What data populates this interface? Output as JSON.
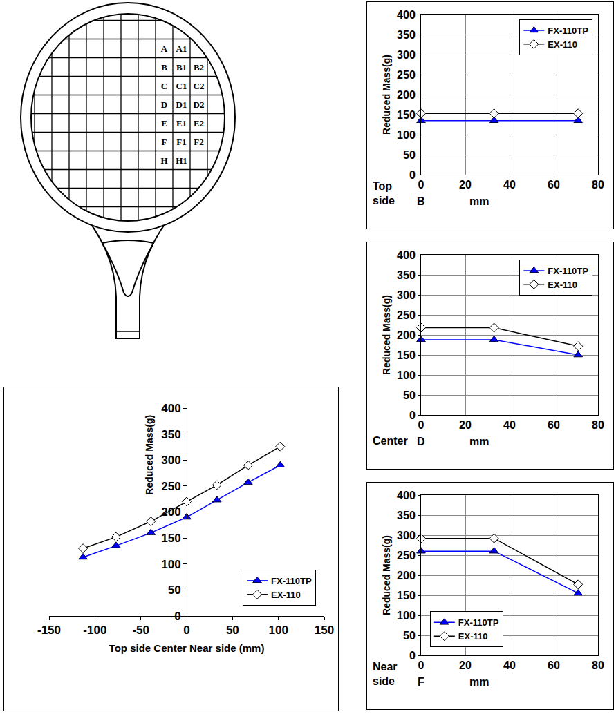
{
  "diagram": {
    "rows": [
      [
        "A",
        "A1"
      ],
      [
        "B",
        "B1",
        "B2"
      ],
      [
        "C",
        "C1",
        "C2"
      ],
      [
        "D",
        "D1",
        "D2"
      ],
      [
        "E",
        "E1",
        "E2"
      ],
      [
        "F",
        "F1",
        "F2"
      ],
      [
        "H",
        "H1"
      ]
    ]
  },
  "chart_data": [
    {
      "type": "line",
      "x_label": "Top side Center Near side (mm)",
      "y_label": "Reduced Mass(g)",
      "x": [
        -113,
        -77,
        -39,
        0,
        33,
        67,
        102
      ],
      "series": [
        {
          "name": "FX-110TP",
          "color": "#0000ff",
          "marker": "triangle-up",
          "values": [
            113,
            135,
            160,
            190,
            223,
            257,
            290
          ]
        },
        {
          "name": "EX-110",
          "color": "#000000",
          "marker": "diamond-open",
          "values": [
            130,
            152,
            182,
            220,
            252,
            290,
            326
          ]
        }
      ],
      "xlim": [
        -150,
        150
      ],
      "xticks": [
        -150,
        -100,
        -50,
        0,
        50,
        100,
        150
      ],
      "ylim": [
        0,
        400
      ],
      "yticks": [
        0,
        50,
        100,
        150,
        200,
        250,
        300,
        350,
        400
      ],
      "grid": false,
      "legend": "lower right"
    },
    {
      "type": "line",
      "y_label": "Reduced Mass(g)",
      "annotations": [
        "Top side",
        "B",
        "mm"
      ],
      "x": [
        0,
        33,
        71
      ],
      "series": [
        {
          "name": "FX-110TP",
          "color": "#0000ff",
          "marker": "triangle-up",
          "values": [
            135,
            135,
            135
          ]
        },
        {
          "name": "EX-110",
          "color": "#000000",
          "marker": "diamond-open",
          "values": [
            153,
            153,
            153
          ]
        }
      ],
      "xlim": [
        0,
        80
      ],
      "xticks": [
        0,
        20,
        40,
        60,
        80
      ],
      "ylim": [
        0,
        400
      ],
      "yticks": [
        0,
        50,
        100,
        150,
        200,
        250,
        300,
        350,
        400
      ],
      "grid": true,
      "legend": "upper right"
    },
    {
      "type": "line",
      "y_label": "Reduced Mass(g)",
      "annotations": [
        "Center",
        "D",
        "mm"
      ],
      "x": [
        0,
        33,
        71
      ],
      "series": [
        {
          "name": "FX-110TP",
          "color": "#0000ff",
          "marker": "triangle-up",
          "values": [
            188,
            188,
            150
          ]
        },
        {
          "name": "EX-110",
          "color": "#000000",
          "marker": "diamond-open",
          "values": [
            218,
            218,
            172
          ]
        }
      ],
      "xlim": [
        0,
        80
      ],
      "xticks": [
        0,
        20,
        40,
        60,
        80
      ],
      "ylim": [
        0,
        400
      ],
      "yticks": [
        0,
        50,
        100,
        150,
        200,
        250,
        300,
        350,
        400
      ],
      "grid": true,
      "legend": "upper right"
    },
    {
      "type": "line",
      "y_label": "Reduced Mass(g)",
      "annotations": [
        "Near side",
        "F",
        "mm"
      ],
      "x": [
        0,
        33,
        71
      ],
      "series": [
        {
          "name": "FX-110TP",
          "color": "#0000ff",
          "marker": "triangle-up",
          "values": [
            260,
            260,
            155
          ]
        },
        {
          "name": "EX-110",
          "color": "#000000",
          "marker": "diamond-open",
          "values": [
            292,
            292,
            177
          ]
        }
      ],
      "xlim": [
        0,
        80
      ],
      "xticks": [
        0,
        20,
        40,
        60,
        80
      ],
      "ylim": [
        0,
        400
      ],
      "yticks": [
        0,
        50,
        100,
        150,
        200,
        250,
        300,
        350,
        400
      ],
      "grid": true,
      "legend": "lower left"
    }
  ]
}
